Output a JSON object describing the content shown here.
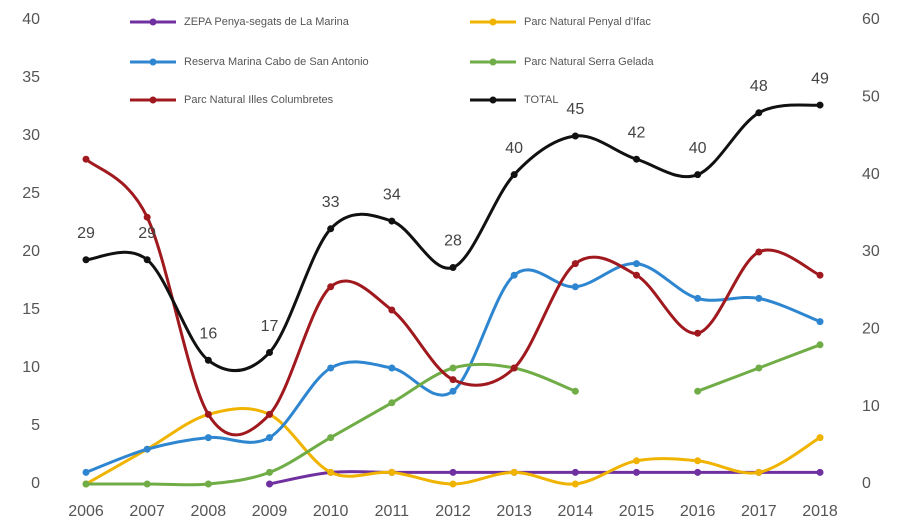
{
  "chart_data": {
    "type": "line",
    "x": [
      2006,
      2007,
      2008,
      2009,
      2010,
      2011,
      2012,
      2013,
      2014,
      2015,
      2016,
      2017,
      2018
    ],
    "series": [
      {
        "name": "ZEPA Penya-segats de La Marina",
        "color": "#7030a0",
        "values": [
          null,
          null,
          null,
          0,
          1,
          1,
          1,
          1,
          1,
          1,
          1,
          1,
          1
        ]
      },
      {
        "name": "Parc Natural Penyal d'Ifac",
        "color": "#f0b400",
        "values": [
          0,
          3,
          6,
          6,
          1,
          1,
          0,
          1,
          0,
          2,
          2,
          1,
          4
        ]
      },
      {
        "name": "Reserva Marina Cabo de San Antonio",
        "color": "#2e86d0",
        "values": [
          1,
          3,
          4,
          4,
          10,
          10,
          8,
          18,
          17,
          19,
          16,
          16,
          14
        ]
      },
      {
        "name": "Parc Natural Serra Gelada",
        "color": "#70ad47",
        "values": [
          0,
          0,
          0,
          1,
          4,
          7,
          10,
          10,
          8,
          null,
          8,
          10,
          12
        ]
      },
      {
        "name": "Parc Natural Illes Columbretes",
        "color": "#a0191e",
        "values": [
          28,
          23,
          6,
          6,
          17,
          15,
          9,
          10,
          19,
          18,
          13,
          20,
          18
        ]
      },
      {
        "name": "TOTAL",
        "color": "#111111",
        "axis": "y2",
        "values": [
          29,
          29,
          16,
          17,
          33,
          34,
          28,
          40,
          45,
          42,
          40,
          48,
          49
        ]
      }
    ],
    "ylim": [
      0,
      40
    ],
    "yticks": [
      0,
      5,
      10,
      15,
      20,
      25,
      30,
      35,
      40
    ],
    "y2lim": [
      0,
      60
    ],
    "y2ticks": [
      0,
      10,
      20,
      30,
      40,
      50,
      60
    ],
    "smooth": true
  }
}
